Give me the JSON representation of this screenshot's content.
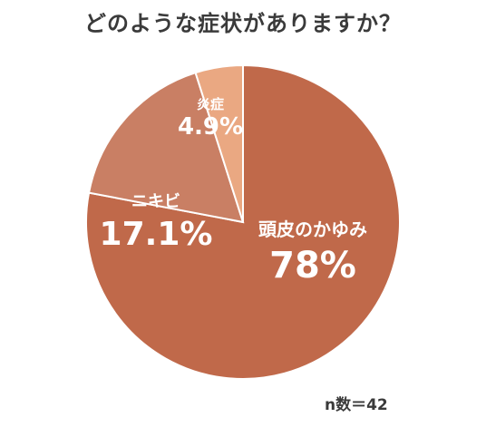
{
  "chart_data": {
    "type": "pie",
    "title": "どのような症状がありますか？",
    "note": "n数＝42",
    "slices": [
      {
        "label": "頭皮のかゆみ",
        "value": 78,
        "value_text": "78%",
        "color": "#c0694a"
      },
      {
        "label": "ニキビ",
        "value": 17.1,
        "value_text": "17.1%",
        "color": "#c97f64"
      },
      {
        "label": "炎症",
        "value": 4.9,
        "value_text": "4.9%",
        "color": "#eaa882"
      }
    ]
  }
}
